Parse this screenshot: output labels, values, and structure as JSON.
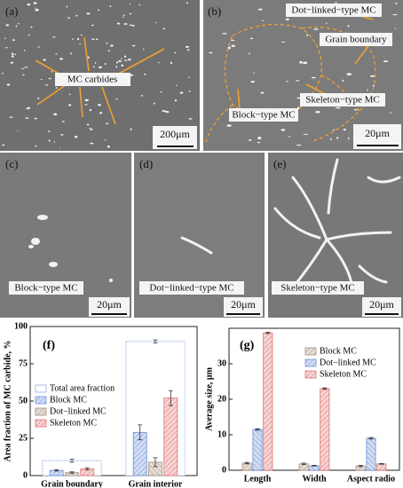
{
  "panels": [
    {
      "label": "(a)",
      "annotations": [
        "MC carbides"
      ],
      "scale": "200μm"
    },
    {
      "label": "(b)",
      "annotations": [
        "Dot−linked−type MC",
        "Grain boundary",
        "Skeleton−type MC",
        "Block−type MC"
      ],
      "scale": "20μm"
    },
    {
      "label": "(c)",
      "annotations": [
        "Block−type MC"
      ],
      "scale": "20μm"
    },
    {
      "label": "(d)",
      "annotations": [
        "Dot−linked−type MC"
      ],
      "scale": "20μm"
    },
    {
      "label": "(e)",
      "annotations": [
        "Skeleton−type MC"
      ],
      "scale": "20μm"
    }
  ],
  "chart_data": [
    {
      "type": "bar",
      "panel_label": "(f)",
      "y_label": "Area fraction of MC carbide, %",
      "categories": [
        "Grain boundary",
        "Grain interior"
      ],
      "ylim": [
        0,
        100
      ],
      "yticks": [
        0,
        25,
        50,
        75,
        100
      ],
      "total": {
        "name": "Total area fraction",
        "color": "#8fb0e8",
        "values": [
          10,
          90
        ],
        "errors": [
          1,
          1
        ]
      },
      "series": [
        {
          "name": "Block MC",
          "color": "#6d8fd6",
          "values": [
            3.5,
            29
          ],
          "errors": [
            0.5,
            5
          ]
        },
        {
          "name": "Dot−linked MC",
          "color": "#a89080",
          "values": [
            2,
            9
          ],
          "errors": [
            0.5,
            3
          ]
        },
        {
          "name": "Skeleton MC",
          "color": "#e07070",
          "values": [
            4.5,
            52
          ],
          "errors": [
            0.8,
            5
          ]
        }
      ],
      "legend": "upper left"
    },
    {
      "type": "bar",
      "panel_label": "(g)",
      "y_label": "Average size, μm",
      "categories": [
        "Length",
        "Width",
        "Aspect radio"
      ],
      "ylim": [
        0,
        40
      ],
      "yticks": [
        0,
        10,
        20,
        30
      ],
      "series": [
        {
          "name": "Block MC",
          "color": "#a89080",
          "values": [
            2,
            1.8,
            1.2
          ],
          "errors": [
            0.2,
            0.2,
            0.2
          ]
        },
        {
          "name": "Dot−linked MC",
          "color": "#6d8fd6",
          "values": [
            11.5,
            1.3,
            9
          ],
          "errors": [
            0.2,
            0.1,
            0.2
          ]
        },
        {
          "name": "Skeleton MC",
          "color": "#e07070",
          "values": [
            38.7,
            23,
            1.8
          ],
          "errors": [
            0.2,
            0.2,
            0.1
          ]
        }
      ],
      "legend": "upper right"
    }
  ]
}
